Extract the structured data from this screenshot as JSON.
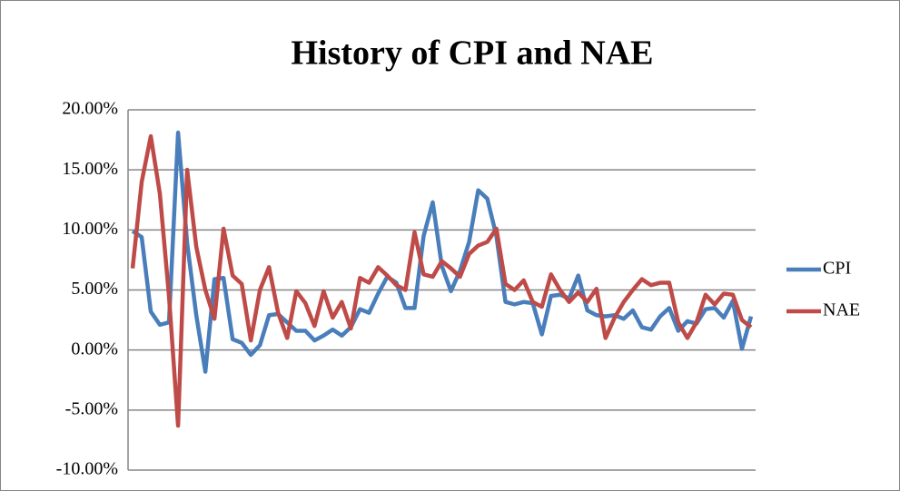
{
  "chart_data": {
    "type": "line",
    "title": "History of CPI and NAE",
    "categories": [
      null,
      null,
      null,
      null,
      null,
      null,
      null,
      null,
      null,
      null,
      null,
      null,
      null,
      null,
      null,
      null,
      null,
      null,
      null,
      null,
      null,
      null,
      null,
      null,
      null,
      null,
      null,
      null,
      null,
      null,
      null,
      null,
      null,
      null,
      null,
      null,
      null,
      null,
      null,
      null,
      null,
      null,
      null,
      null,
      null,
      null,
      null,
      null,
      null,
      null,
      null,
      null,
      null,
      null,
      null,
      null,
      null,
      null,
      null,
      null,
      null,
      null,
      null,
      null,
      null,
      null,
      null,
      null,
      null
    ],
    "series": [
      {
        "name": "CPI",
        "color": "#4a7ebb",
        "values": [
          9.9,
          9.4,
          3.2,
          2.1,
          2.3,
          18.1,
          8.9,
          2.9,
          -1.8,
          5.9,
          6.0,
          0.9,
          0.6,
          -0.4,
          0.4,
          2.9,
          3.0,
          2.3,
          1.6,
          1.6,
          0.8,
          1.2,
          1.7,
          1.2,
          1.9,
          3.4,
          3.1,
          4.7,
          6.1,
          5.6,
          3.5,
          3.5,
          9.5,
          12.3,
          7.0,
          4.9,
          6.6,
          9.0,
          13.3,
          12.6,
          9.5,
          4.0,
          3.8,
          4.0,
          3.9,
          1.3,
          4.5,
          4.6,
          4.3,
          6.2,
          3.3,
          2.9,
          2.8,
          2.9,
          2.6,
          3.3,
          1.9,
          1.7,
          2.8,
          3.5,
          1.6,
          2.4,
          2.2,
          3.4,
          3.5,
          2.7,
          4.1,
          0.1,
          2.8
        ]
      },
      {
        "name": "NAE",
        "color": "#be4b48",
        "values": [
          6.8,
          14.0,
          17.8,
          13.0,
          4.5,
          -6.3,
          15.0,
          8.6,
          5.0,
          2.6,
          10.1,
          6.2,
          5.5,
          0.8,
          5.0,
          6.9,
          3.1,
          1.0,
          4.9,
          3.9,
          2.0,
          4.9,
          2.7,
          4.0,
          1.8,
          6.0,
          5.6,
          6.9,
          6.2,
          5.4,
          5.0,
          9.8,
          6.3,
          6.1,
          7.4,
          6.8,
          6.1,
          8.0,
          8.7,
          9.0,
          10.1,
          5.5,
          5.0,
          5.8,
          4.0,
          3.6,
          6.3,
          5.0,
          4.0,
          4.8,
          4.0,
          5.1,
          1.0,
          2.7,
          4.0,
          5.0,
          5.9,
          5.4,
          5.6,
          5.6,
          2.3,
          1.0,
          2.3,
          4.6,
          3.8,
          4.7,
          4.6,
          2.5,
          1.9
        ]
      }
    ],
    "ylim": [
      -10,
      20
    ],
    "yticks": [
      {
        "value": -10,
        "label": "-10.00%"
      },
      {
        "value": -5,
        "label": "-5.00%"
      },
      {
        "value": 0,
        "label": "0.00%"
      },
      {
        "value": 5,
        "label": "5.00%"
      },
      {
        "value": 10,
        "label": "10.00%"
      },
      {
        "value": 15,
        "label": "15.00%"
      },
      {
        "value": 20,
        "label": "20.00%"
      }
    ],
    "grid": true,
    "legend": "right"
  }
}
